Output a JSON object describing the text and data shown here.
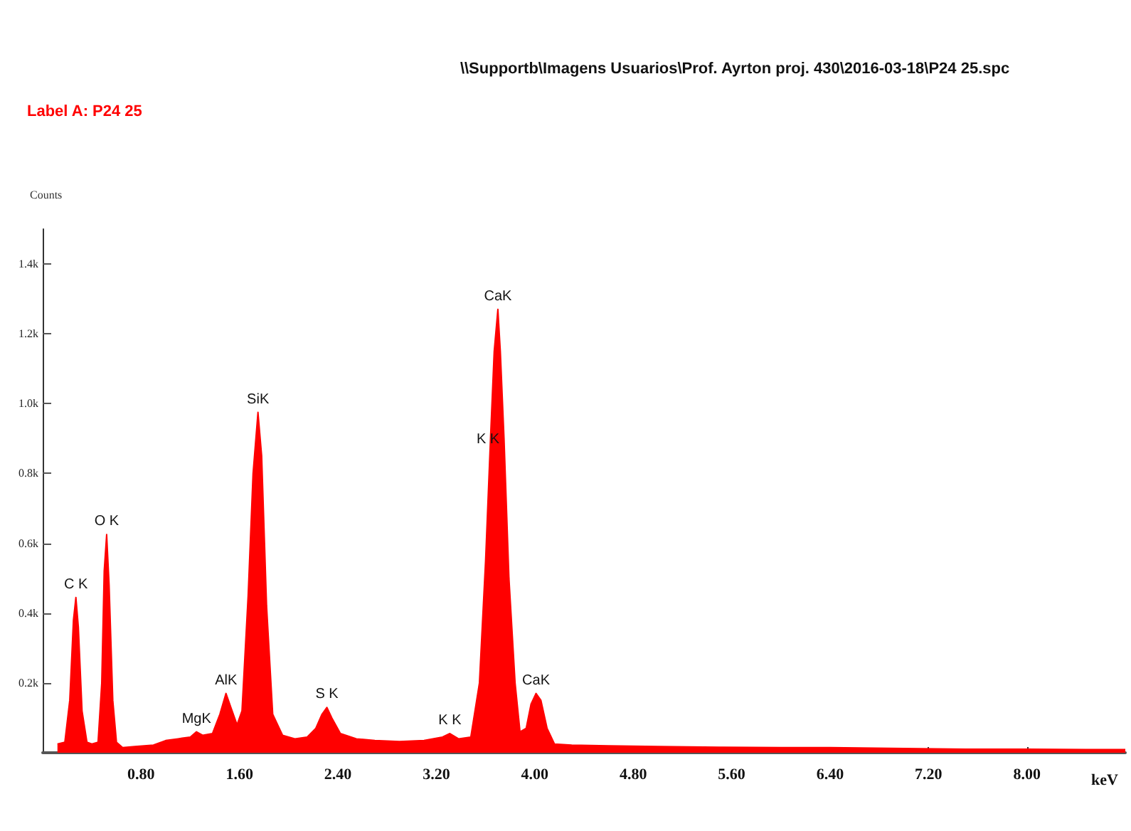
{
  "chart_data": {
    "type": "area",
    "title": "\\\\Supportb\\Imagens Usuarios\\Prof. Ayrton proj. 430\\2016-03-18\\P24 25.spc",
    "subtitle": "Label A: P24 25",
    "xlabel": "keV",
    "ylabel": "Counts",
    "x": [
      0.12,
      0.18,
      0.22,
      0.25,
      0.27,
      0.29,
      0.32,
      0.36,
      0.4,
      0.45,
      0.48,
      0.5,
      0.52,
      0.54,
      0.57,
      0.6,
      0.65,
      0.75,
      0.9,
      1.0,
      1.1,
      1.2,
      1.25,
      1.3,
      1.38,
      1.44,
      1.49,
      1.53,
      1.58,
      1.62,
      1.67,
      1.71,
      1.75,
      1.78,
      1.82,
      1.87,
      1.95,
      2.05,
      2.15,
      2.22,
      2.27,
      2.31,
      2.35,
      2.42,
      2.55,
      2.7,
      2.9,
      3.1,
      3.25,
      3.31,
      3.38,
      3.48,
      3.55,
      3.6,
      3.64,
      3.67,
      3.7,
      3.72,
      3.75,
      3.79,
      3.84,
      3.88,
      3.93,
      3.97,
      4.01,
      4.05,
      4.1,
      4.16,
      4.3,
      4.6,
      5.0,
      5.5,
      6.0,
      6.4,
      7.0,
      7.5,
      8.0,
      8.5,
      8.8
    ],
    "series": [
      {
        "color": "#ff0000",
        "values": [
          25,
          30,
          150,
          380,
          445,
          360,
          120,
          30,
          25,
          30,
          200,
          520,
          625,
          480,
          150,
          30,
          15,
          18,
          22,
          35,
          40,
          45,
          60,
          50,
          55,
          110,
          170,
          130,
          80,
          120,
          450,
          800,
          975,
          850,
          420,
          110,
          50,
          40,
          45,
          70,
          110,
          130,
          100,
          55,
          40,
          35,
          32,
          35,
          45,
          55,
          40,
          45,
          200,
          550,
          900,
          1150,
          1270,
          1150,
          900,
          500,
          200,
          60,
          70,
          140,
          170,
          150,
          70,
          25,
          22,
          20,
          18,
          16,
          15,
          15,
          12,
          10,
          10,
          9,
          9
        ]
      }
    ],
    "xlim": [
      0,
      8.8
    ],
    "xticks": [
      {
        "value": 0.8,
        "label": "0.80"
      },
      {
        "value": 1.6,
        "label": "1.60"
      },
      {
        "value": 2.4,
        "label": "2.40"
      },
      {
        "value": 3.2,
        "label": "3.20"
      },
      {
        "value": 4,
        "label": "4.00"
      },
      {
        "value": 4.8,
        "label": "4.80"
      },
      {
        "value": 5.6,
        "label": "5.60"
      },
      {
        "value": 6.4,
        "label": "6.40"
      },
      {
        "value": 7.2,
        "label": "7.20"
      },
      {
        "value": 8,
        "label": "8.00"
      }
    ],
    "ylim": [
      0,
      1500
    ],
    "yticks": [
      {
        "value": 200,
        "label": "0.2k"
      },
      {
        "value": 400,
        "label": "0.4k"
      },
      {
        "value": 600,
        "label": "0.6k"
      },
      {
        "value": 800,
        "label": "0.8k"
      },
      {
        "value": 1000,
        "label": "1.0k"
      },
      {
        "value": 1200,
        "label": "1.2k"
      },
      {
        "value": 1400,
        "label": "1.4k"
      }
    ],
    "annotations": [
      {
        "text": "C K",
        "x": 0.27,
        "y": 445
      },
      {
        "text": "O K",
        "x": 0.52,
        "y": 625
      },
      {
        "text": "MgK",
        "x": 1.25,
        "y": 60
      },
      {
        "text": "AlK",
        "x": 1.49,
        "y": 170
      },
      {
        "text": "SiK",
        "x": 1.75,
        "y": 975
      },
      {
        "text": "S K",
        "x": 2.31,
        "y": 130
      },
      {
        "text": "K K",
        "x": 3.31,
        "y": 55
      },
      {
        "text": "CaK",
        "x": 3.7,
        "y": 1270
      },
      {
        "text": "K K",
        "x": 3.62,
        "y": 860
      },
      {
        "text": "CaK",
        "x": 4.01,
        "y": 170
      }
    ],
    "grid": false
  }
}
